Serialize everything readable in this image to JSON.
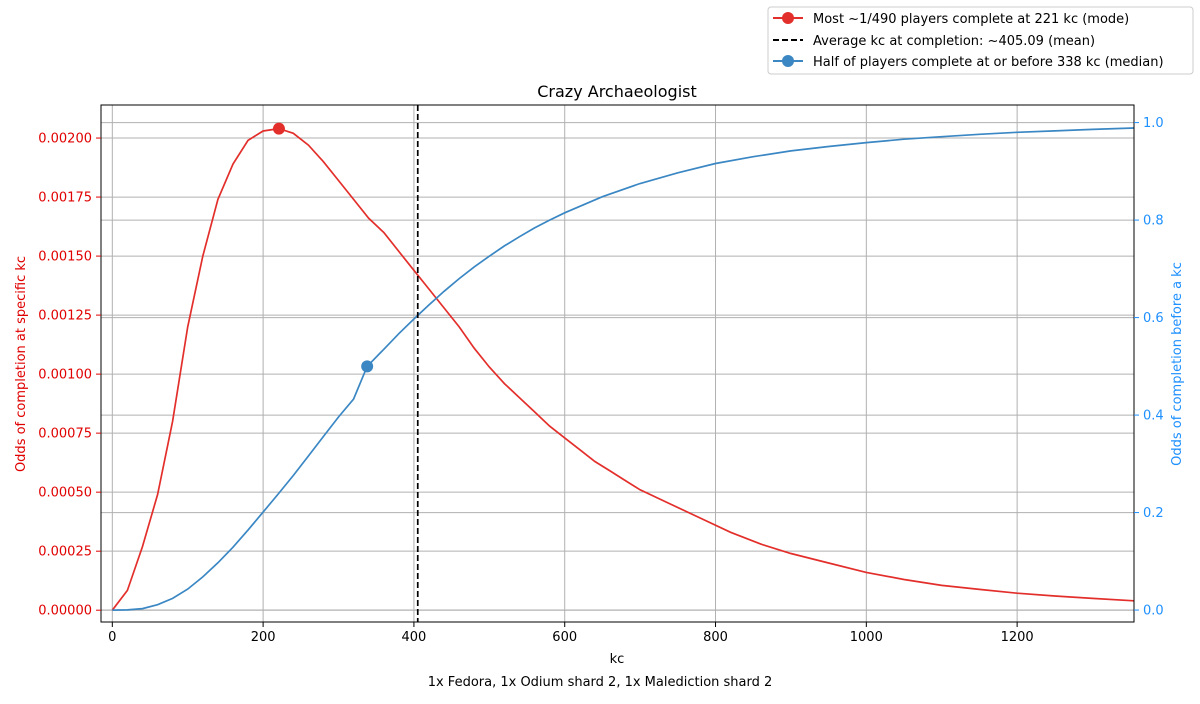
{
  "chart_data": {
    "type": "line",
    "title": "Crazy Archaeologist",
    "xlabel": "kc",
    "ylabel_left": "Odds of completion at specific kc",
    "ylabel_right": "Odds of completion before a kc",
    "footer": "1x Fedora, 1x Odium shard 2, 1x Malediction shard 2",
    "xlim": [
      -15,
      1355
    ],
    "ylim_left": [
      -5e-05,
      0.00214
    ],
    "ylim_right": [
      -0.0245,
      1.0361
    ],
    "x_ticks": [
      0,
      200,
      400,
      600,
      800,
      1000,
      1200
    ],
    "y_left_ticks": [
      "0.00000",
      "0.00025",
      "0.00050",
      "0.00075",
      "0.00100",
      "0.00125",
      "0.00150",
      "0.00175",
      "0.00200"
    ],
    "y_right_ticks": [
      "0.0",
      "0.2",
      "0.4",
      "0.6",
      "0.8",
      "1.0"
    ],
    "grid": true,
    "legend_position": "outside top-right",
    "colors": {
      "mode": "#e32f2b",
      "mean": "#000000",
      "median": "#3a87c4",
      "left_axis": "#e00000",
      "right_axis": "#1e90ff",
      "grid": "#b0b0b0"
    },
    "series": [
      {
        "name": "Most ~1/490 players complete at 221 kc (mode)",
        "axis": "left",
        "style": "solid",
        "x": [
          0,
          20,
          40,
          60,
          80,
          100,
          120,
          140,
          160,
          180,
          200,
          221,
          240,
          260,
          280,
          300,
          320,
          340,
          360,
          380,
          400,
          420,
          440,
          460,
          480,
          500,
          520,
          540,
          560,
          580,
          600,
          620,
          640,
          660,
          680,
          700,
          740,
          780,
          820,
          860,
          900,
          950,
          1000,
          1050,
          1100,
          1150,
          1200,
          1250,
          1300,
          1355
        ],
        "y": [
          0.0,
          8.4e-05,
          0.00027,
          0.00049,
          0.0008,
          0.0012,
          0.0015,
          0.00174,
          0.00189,
          0.00199,
          0.00203,
          0.00204,
          0.00202,
          0.00197,
          0.0019,
          0.00182,
          0.00174,
          0.00166,
          0.0016,
          0.00152,
          0.00144,
          0.00136,
          0.00128,
          0.0012,
          0.00111,
          0.00103,
          0.00096,
          0.0009,
          0.00084,
          0.00078,
          0.00073,
          0.00068,
          0.00063,
          0.00059,
          0.00055,
          0.00051,
          0.00045,
          0.00039,
          0.00033,
          0.00028,
          0.00024,
          0.0002,
          0.00016,
          0.00013,
          0.000105,
          8.8e-05,
          7.2e-05,
          6e-05,
          5e-05,
          4e-05
        ],
        "marker": {
          "x": 221,
          "y": 0.00204
        }
      },
      {
        "name": "Average kc at completion: ~405.09 (mean)",
        "axis": "left",
        "style": "dashed",
        "vline_x": 405.09
      },
      {
        "name": "Half of players complete at or before 338 kc (median)",
        "axis": "right",
        "style": "solid",
        "x": [
          0,
          20,
          40,
          60,
          80,
          100,
          120,
          140,
          160,
          180,
          200,
          220,
          240,
          260,
          280,
          300,
          320,
          338,
          360,
          380,
          400,
          420,
          440,
          460,
          480,
          500,
          520,
          540,
          560,
          580,
          600,
          650,
          700,
          750,
          800,
          850,
          900,
          950,
          1000,
          1050,
          1100,
          1150,
          1200,
          1250,
          1300,
          1355
        ],
        "y": [
          0.0,
          0.0004,
          0.003,
          0.011,
          0.024,
          0.043,
          0.068,
          0.097,
          0.129,
          0.164,
          0.201,
          0.238,
          0.276,
          0.316,
          0.356,
          0.396,
          0.433,
          0.5,
          0.535,
          0.567,
          0.597,
          0.626,
          0.654,
          0.68,
          0.704,
          0.726,
          0.747,
          0.766,
          0.784,
          0.8,
          0.815,
          0.848,
          0.875,
          0.897,
          0.916,
          0.93,
          0.942,
          0.951,
          0.959,
          0.966,
          0.971,
          0.976,
          0.98,
          0.983,
          0.986,
          0.989
        ],
        "marker": {
          "x": 338,
          "y": 0.5
        }
      }
    ]
  }
}
